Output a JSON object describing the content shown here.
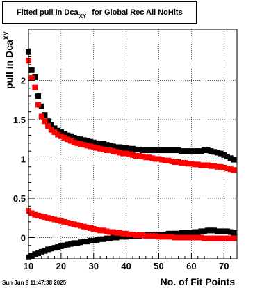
{
  "title": {
    "main": "Fitted pull in Dca",
    "sub": "XY",
    "rest": "for Global Rec All NoHits"
  },
  "ylabel": {
    "main": "pull in Dca",
    "sub": "XY"
  },
  "xlabel": "No. of Fit Points",
  "timestamp": "Sun Jun  8 11:47:38 2025",
  "chart_data": {
    "type": "scatter",
    "xlim": [
      10,
      74
    ],
    "ylim": [
      -0.27,
      2.65
    ],
    "x_ticks": [
      "10",
      "20",
      "30",
      "40",
      "50",
      "60",
      "70"
    ],
    "y_ticks": [
      "0",
      "0.5",
      "1",
      "1.5",
      "2"
    ],
    "grid": true,
    "colors": {
      "black_series": "#000000",
      "red_series": "#ff0000"
    },
    "series": [
      {
        "color": "#000000",
        "x": [
          10,
          11,
          12,
          13,
          14,
          15,
          16,
          17,
          18,
          19,
          20,
          21,
          22,
          23,
          24,
          25,
          26,
          27,
          28,
          29,
          30,
          31,
          32,
          33,
          34,
          35,
          36,
          37,
          38,
          39,
          40,
          41,
          42,
          43,
          44,
          45,
          46,
          47,
          48,
          49,
          50,
          51,
          52,
          53,
          54,
          55,
          56,
          57,
          58,
          59,
          60,
          61,
          62,
          63,
          64,
          65,
          66,
          67,
          68,
          69,
          70,
          71,
          72,
          73
        ],
        "y": [
          2.36,
          2.13,
          2.04,
          1.8,
          1.67,
          1.56,
          1.48,
          1.43,
          1.39,
          1.36,
          1.34,
          1.32,
          1.3,
          1.29,
          1.27,
          1.26,
          1.25,
          1.24,
          1.23,
          1.22,
          1.21,
          1.2,
          1.19,
          1.19,
          1.18,
          1.17,
          1.16,
          1.15,
          1.15,
          1.14,
          1.14,
          1.13,
          1.13,
          1.12,
          1.12,
          1.11,
          1.11,
          1.11,
          1.11,
          1.11,
          1.11,
          1.11,
          1.11,
          1.11,
          1.11,
          1.11,
          1.11,
          1.1,
          1.1,
          1.1,
          1.1,
          1.1,
          1.1,
          1.1,
          1.11,
          1.11,
          1.1,
          1.09,
          1.08,
          1.07,
          1.05,
          1.03,
          1.01,
          0.99
        ]
      },
      {
        "color": "#ff0000",
        "x": [
          10,
          11,
          12,
          13,
          14,
          15,
          16,
          17,
          18,
          19,
          20,
          21,
          22,
          23,
          24,
          25,
          26,
          27,
          28,
          29,
          30,
          31,
          32,
          33,
          34,
          35,
          36,
          37,
          38,
          39,
          40,
          41,
          42,
          43,
          44,
          45,
          46,
          47,
          48,
          49,
          50,
          51,
          52,
          53,
          54,
          55,
          56,
          57,
          58,
          59,
          60,
          61,
          62,
          63,
          64,
          65,
          66,
          67,
          68,
          69,
          70,
          71,
          72,
          73
        ],
        "y": [
          2.25,
          2.03,
          1.91,
          1.69,
          1.54,
          1.48,
          1.42,
          1.37,
          1.34,
          1.31,
          1.29,
          1.27,
          1.25,
          1.23,
          1.21,
          1.2,
          1.19,
          1.18,
          1.17,
          1.16,
          1.15,
          1.14,
          1.13,
          1.12,
          1.11,
          1.11,
          1.1,
          1.09,
          1.08,
          1.07,
          1.07,
          1.06,
          1.05,
          1.04,
          1.04,
          1.03,
          1.02,
          1.02,
          1.01,
          1.0,
          1.0,
          0.99,
          0.98,
          0.98,
          0.97,
          0.96,
          0.96,
          0.95,
          0.95,
          0.94,
          0.94,
          0.93,
          0.93,
          0.92,
          0.92,
          0.92,
          0.91,
          0.91,
          0.9,
          0.9,
          0.89,
          0.88,
          0.87,
          0.86
        ]
      },
      {
        "color": "#000000",
        "x": [
          10,
          11,
          12,
          13,
          14,
          15,
          16,
          17,
          18,
          19,
          20,
          21,
          22,
          23,
          24,
          25,
          26,
          27,
          28,
          29,
          30,
          31,
          32,
          33,
          34,
          35,
          36,
          37,
          38,
          39,
          40,
          41,
          42,
          43,
          44,
          45,
          46,
          47,
          48,
          49,
          50,
          51,
          52,
          53,
          54,
          55,
          56,
          57,
          58,
          59,
          60,
          61,
          62,
          63,
          64,
          65,
          66,
          67,
          68,
          69,
          70,
          71,
          72,
          73
        ],
        "y": [
          -0.25,
          -0.23,
          -0.21,
          -0.2,
          -0.18,
          -0.17,
          -0.15,
          -0.14,
          -0.13,
          -0.12,
          -0.11,
          -0.1,
          -0.09,
          -0.08,
          -0.07,
          -0.07,
          -0.06,
          -0.05,
          -0.05,
          -0.04,
          -0.04,
          -0.03,
          -0.02,
          -0.02,
          -0.01,
          -0.01,
          0.0,
          0.0,
          0.01,
          0.01,
          0.01,
          0.02,
          0.02,
          0.02,
          0.02,
          0.03,
          0.03,
          0.03,
          0.03,
          0.04,
          0.04,
          0.04,
          0.04,
          0.05,
          0.05,
          0.05,
          0.05,
          0.06,
          0.06,
          0.06,
          0.06,
          0.07,
          0.07,
          0.08,
          0.08,
          0.09,
          0.09,
          0.09,
          0.08,
          0.08,
          0.08,
          0.08,
          0.07,
          0.06
        ]
      },
      {
        "color": "#ff0000",
        "x": [
          10,
          11,
          12,
          13,
          14,
          15,
          16,
          17,
          18,
          19,
          20,
          21,
          22,
          23,
          24,
          25,
          26,
          27,
          28,
          29,
          30,
          31,
          32,
          33,
          34,
          35,
          36,
          37,
          38,
          39,
          40,
          41,
          42,
          43,
          44,
          45,
          46,
          47,
          48,
          49,
          50,
          51,
          52,
          53,
          54,
          55,
          56,
          57,
          58,
          59,
          60,
          61,
          62,
          63,
          64,
          65,
          66,
          67,
          68,
          69,
          70,
          71,
          72,
          73
        ],
        "y": [
          0.34,
          0.31,
          0.29,
          0.28,
          0.27,
          0.26,
          0.25,
          0.24,
          0.23,
          0.22,
          0.21,
          0.2,
          0.19,
          0.18,
          0.17,
          0.16,
          0.15,
          0.14,
          0.13,
          0.12,
          0.11,
          0.1,
          0.09,
          0.09,
          0.08,
          0.07,
          0.07,
          0.06,
          0.06,
          0.05,
          0.05,
          0.04,
          0.04,
          0.03,
          0.03,
          0.03,
          0.02,
          0.02,
          0.02,
          0.02,
          0.01,
          0.01,
          0.01,
          0.01,
          0.01,
          0.0,
          0.0,
          0.0,
          0.0,
          0.0,
          0.0,
          0.0,
          0.0,
          0.0,
          -0.01,
          -0.01,
          -0.01,
          -0.01,
          -0.01,
          -0.01,
          -0.01,
          -0.01,
          -0.01,
          -0.01
        ]
      }
    ]
  }
}
